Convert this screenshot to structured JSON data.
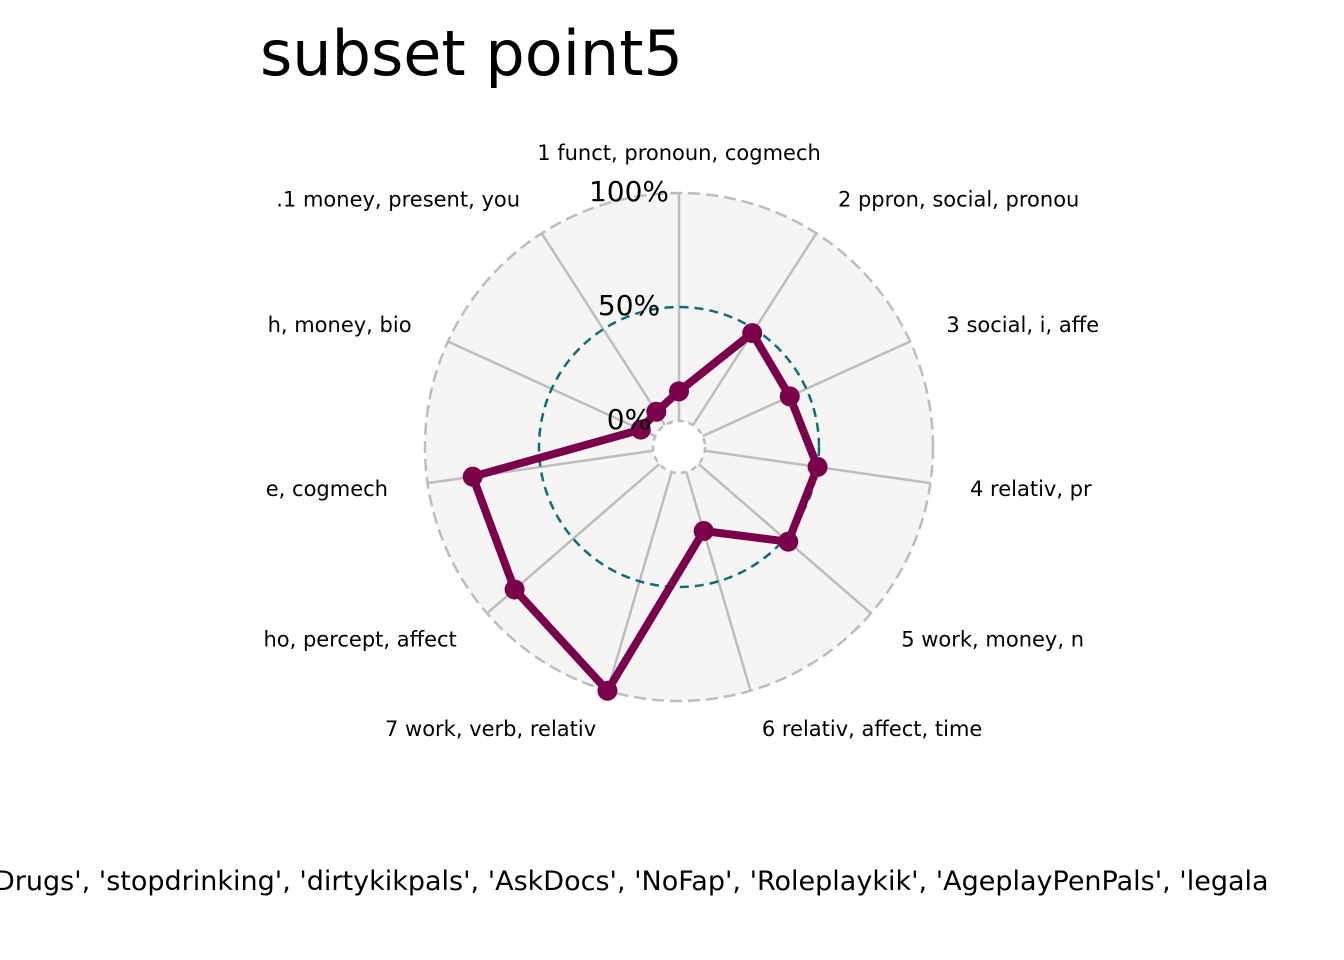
{
  "title": "subset point5",
  "footer": "Drugs', 'stopdrinking', 'dirtykikpals', 'AskDocs', 'NoFap', 'Roleplaykik', 'AgeplayPenPals', 'legala",
  "colors": {
    "series": "#7a004c",
    "ring50": "#0a6e7e",
    "panel": "#f6f5f4",
    "spokes": "#bdbdbd",
    "outer_ring": "#bdbdbd"
  },
  "chart_data": {
    "type": "radar",
    "title": "subset point5",
    "ring_labels": [
      "0%",
      "50%",
      "100%"
    ],
    "categories": [
      "1 funct, pronoun, cogmech",
      "2 ppron, social, pronou",
      "3 social, i, affe",
      "4 relativ, pr",
      "5 work, money, n",
      "6 relativ, affect, time",
      "7 work, verb, relativ",
      "ho, percept, affect",
      "e, cogmech",
      "h, money, bio",
      ".1 money, present, you"
    ],
    "series": [
      {
        "values": [
          0.13,
          0.48,
          0.42,
          0.5,
          0.52,
          0.27,
          1.0,
          0.84,
          0.8,
          0.07,
          0.07
        ]
      }
    ],
    "ylim": [
      0,
      1
    ]
  }
}
